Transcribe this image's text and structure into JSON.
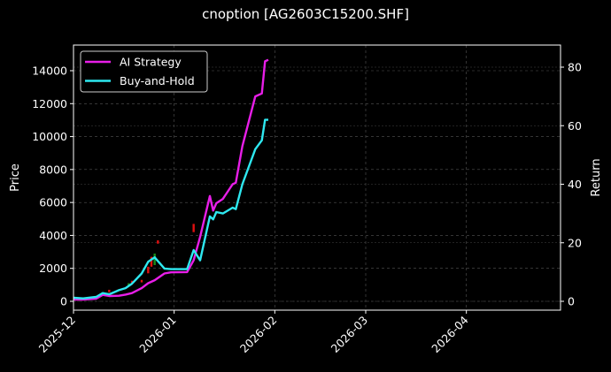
{
  "chart_data": {
    "type": "line",
    "title": "cnoption [AG2603C15200.SHF]",
    "xlabel": "",
    "ylabel": "Price",
    "ylabel_right": "Return",
    "x_ticks": [
      "2025-12",
      "2026-01",
      "2026-02",
      "2026-03",
      "2026-04"
    ],
    "y_ticks_left": [
      0,
      2000,
      4000,
      6000,
      8000,
      10000,
      12000,
      14000
    ],
    "y_ticks_right": [
      0,
      20,
      40,
      60,
      80
    ],
    "ylim_left": [
      -600,
      15700
    ],
    "ylim_right": [
      -3,
      87
    ],
    "grid": true,
    "legend_position": "upper left",
    "colors": {
      "ai_strategy": "#e81ee8",
      "buy_and_hold": "#2ee8f0",
      "candle_up": "#1a8a1a",
      "candle_down": "#e01010"
    },
    "series": [
      {
        "name": "AI Strategy",
        "axis": "right",
        "x": [
          "2025-12-01",
          "2025-12-04",
          "2025-12-08",
          "2025-12-10",
          "2025-12-12",
          "2025-12-15",
          "2025-12-17",
          "2025-12-19",
          "2025-12-22",
          "2025-12-24",
          "2025-12-26",
          "2025-12-29",
          "2025-12-31",
          "2026-01-05",
          "2026-01-07",
          "2026-01-09",
          "2026-01-12",
          "2026-01-13",
          "2026-01-14",
          "2026-01-16",
          "2026-01-19",
          "2026-01-20",
          "2026-01-22",
          "2026-01-26",
          "2026-01-28",
          "2026-01-29",
          "2026-01-30"
        ],
        "values": [
          0.6,
          0.6,
          0.9,
          2.2,
          1.8,
          1.9,
          2.3,
          2.8,
          4.5,
          6.2,
          7.2,
          9.5,
          9.9,
          10.0,
          14.0,
          22.0,
          36.0,
          31.0,
          33.5,
          35.0,
          40.0,
          40.5,
          53.0,
          70.0,
          71.0,
          82.0,
          82.5
        ]
      },
      {
        "name": "Buy-and-Hold",
        "axis": "right",
        "x": [
          "2025-12-01",
          "2025-12-04",
          "2025-12-08",
          "2025-12-10",
          "2025-12-12",
          "2025-12-15",
          "2025-12-17",
          "2025-12-19",
          "2025-12-22",
          "2025-12-24",
          "2025-12-26",
          "2025-12-29",
          "2025-12-31",
          "2026-01-05",
          "2026-01-07",
          "2026-01-09",
          "2026-01-12",
          "2026-01-13",
          "2026-01-14",
          "2026-01-16",
          "2026-01-19",
          "2026-01-20",
          "2026-01-22",
          "2026-01-26",
          "2026-01-28",
          "2026-01-29",
          "2026-01-30"
        ],
        "values": [
          1.2,
          1.0,
          1.5,
          2.8,
          2.4,
          3.8,
          4.5,
          6.0,
          9.5,
          13.5,
          15.0,
          11.2,
          11.0,
          11.0,
          17.5,
          14.0,
          29.0,
          28.0,
          30.5,
          30.0,
          32.0,
          31.5,
          40.0,
          52.0,
          55.0,
          62.0,
          62.0
        ]
      }
    ],
    "candles": [
      {
        "x": "2025-12-12",
        "open": 550,
        "close": 700,
        "color": "down"
      },
      {
        "x": "2025-12-18",
        "open": 900,
        "close": 1100,
        "color": "up"
      },
      {
        "x": "2025-12-19",
        "open": 1050,
        "close": 1250,
        "color": "down"
      },
      {
        "x": "2025-12-22",
        "open": 1150,
        "close": 1300,
        "color": "down"
      },
      {
        "x": "2025-12-24",
        "open": 1700,
        "close": 2100,
        "color": "down"
      },
      {
        "x": "2025-12-25",
        "open": 2100,
        "close": 2700,
        "color": "down"
      },
      {
        "x": "2025-12-26",
        "open": 2200,
        "close": 2900,
        "color": "up"
      },
      {
        "x": "2025-12-27",
        "open": 3500,
        "close": 3700,
        "color": "down"
      },
      {
        "x": "2026-01-07",
        "open": 4200,
        "close": 4700,
        "color": "down"
      }
    ]
  }
}
